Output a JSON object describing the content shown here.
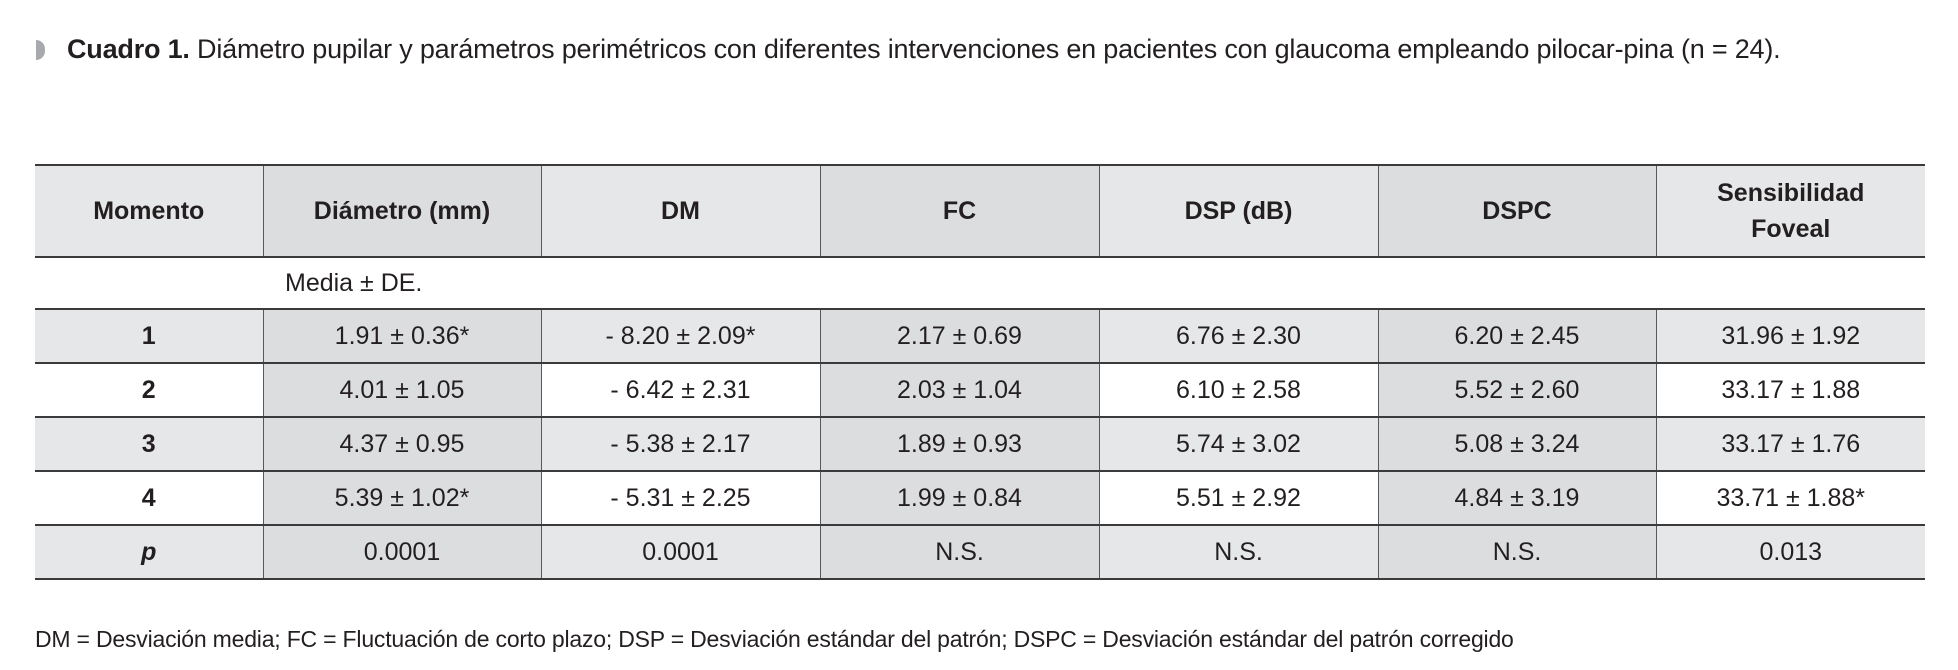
{
  "caption": {
    "label": "Cuadro 1.",
    "text": "Diámetro pupilar y parámetros perimétricos con diferentes intervenciones en pacientes con glaucoma empleando pilocar-pina (n = 24)."
  },
  "table": {
    "headers": [
      "Momento",
      "Diámetro (mm)",
      "DM",
      "FC",
      "DSP (dB)",
      "DSPC",
      "Sensibilidad Foveal"
    ],
    "subheader": "Media ± DE.",
    "rows": [
      [
        "1",
        "1.91 ± 0.36*",
        "- 8.20 ± 2.09*",
        "2.17 ± 0.69",
        "6.76 ± 2.30",
        "6.20 ± 2.45",
        "31.96 ± 1.92"
      ],
      [
        "2",
        "4.01 ± 1.05",
        "- 6.42 ± 2.31",
        "2.03 ± 1.04",
        "6.10 ± 2.58",
        "5.52 ± 2.60",
        "33.17 ± 1.88"
      ],
      [
        "3",
        "4.37 ± 0.95",
        "- 5.38 ± 2.17",
        "1.89 ± 0.93",
        "5.74 ± 3.02",
        "5.08 ± 3.24",
        "33.17 ± 1.76"
      ],
      [
        "4",
        "5.39 ± 1.02*",
        "- 5.31 ± 2.25",
        "1.99 ± 0.84",
        "5.51 ± 2.92",
        "4.84 ± 3.19",
        "33.71 ± 1.88*"
      ],
      [
        "p",
        "0.0001",
        "0.0001",
        "N.S.",
        "N.S.",
        "N.S.",
        "0.013"
      ]
    ]
  },
  "footnote": "DM = Desviación media; FC = Fluctuación de corto plazo; DSP = Desviación estándar del patrón; DSPC = Desviación estándar del patrón corregido"
}
